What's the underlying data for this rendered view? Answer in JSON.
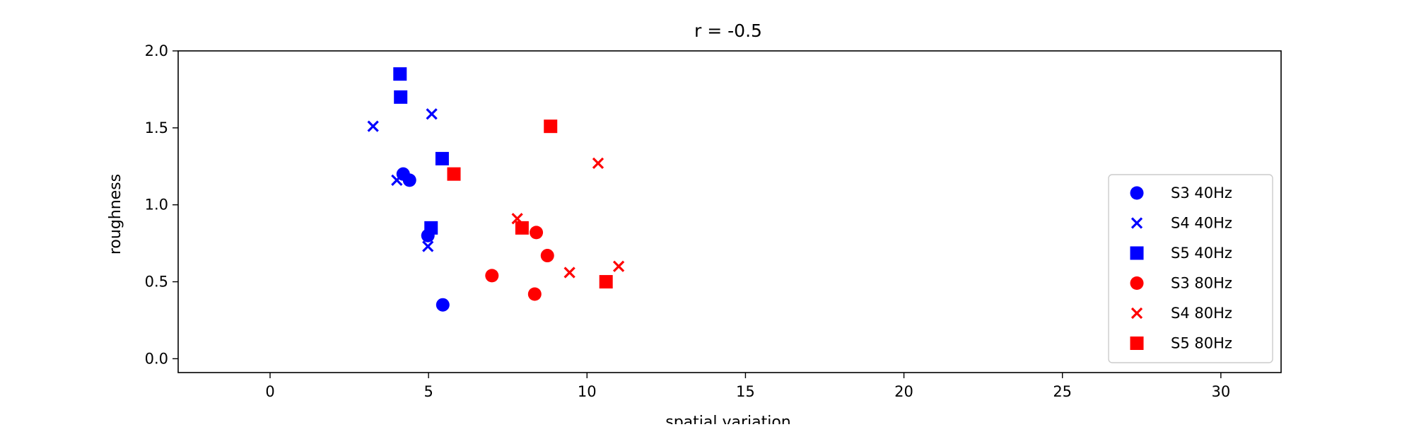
{
  "chart_data": {
    "type": "scatter",
    "title": "r = -0.5",
    "xlabel": "spatial variation",
    "ylabel": "roughness",
    "xlim": [
      -2.9,
      31.9
    ],
    "ylim": [
      -0.09,
      2.0
    ],
    "x_ticks": [
      0,
      5,
      10,
      15,
      20,
      25,
      30
    ],
    "x_tick_labels": [
      "0",
      "5",
      "10",
      "15",
      "20",
      "25",
      "30"
    ],
    "y_ticks": [
      0.0,
      0.5,
      1.0,
      1.5,
      2.0
    ],
    "y_tick_labels": [
      "0.0",
      "0.5",
      "1.0",
      "1.5",
      "2.0"
    ],
    "grid": false,
    "legend_position": "lower-right",
    "series": [
      {
        "name": "S3 40Hz",
        "marker": "circle",
        "color": "#0000ff",
        "points": [
          [
            4.2,
            1.2
          ],
          [
            4.4,
            1.16
          ],
          [
            4.98,
            0.8
          ],
          [
            5.45,
            0.35
          ]
        ]
      },
      {
        "name": "S4 40Hz",
        "marker": "x",
        "color": "#0000ff",
        "points": [
          [
            3.25,
            1.51
          ],
          [
            5.1,
            1.59
          ],
          [
            4.0,
            1.16
          ],
          [
            4.98,
            0.73
          ]
        ]
      },
      {
        "name": "S5 40Hz",
        "marker": "square",
        "color": "#0000ff",
        "points": [
          [
            4.1,
            1.85
          ],
          [
            4.12,
            1.7
          ],
          [
            5.43,
            1.3
          ],
          [
            5.08,
            0.85
          ]
        ]
      },
      {
        "name": "S3 80Hz",
        "marker": "circle",
        "color": "#ff0000",
        "points": [
          [
            8.4,
            0.82
          ],
          [
            8.75,
            0.67
          ],
          [
            7.0,
            0.54
          ],
          [
            8.35,
            0.42
          ]
        ]
      },
      {
        "name": "S4 80Hz",
        "marker": "x",
        "color": "#ff0000",
        "points": [
          [
            10.35,
            1.27
          ],
          [
            7.8,
            0.91
          ],
          [
            9.45,
            0.56
          ],
          [
            11.0,
            0.6
          ]
        ]
      },
      {
        "name": "S5 80Hz",
        "marker": "square",
        "color": "#ff0000",
        "points": [
          [
            8.85,
            1.51
          ],
          [
            5.8,
            1.2
          ],
          [
            7.95,
            0.85
          ],
          [
            10.6,
            0.5
          ]
        ]
      }
    ]
  }
}
